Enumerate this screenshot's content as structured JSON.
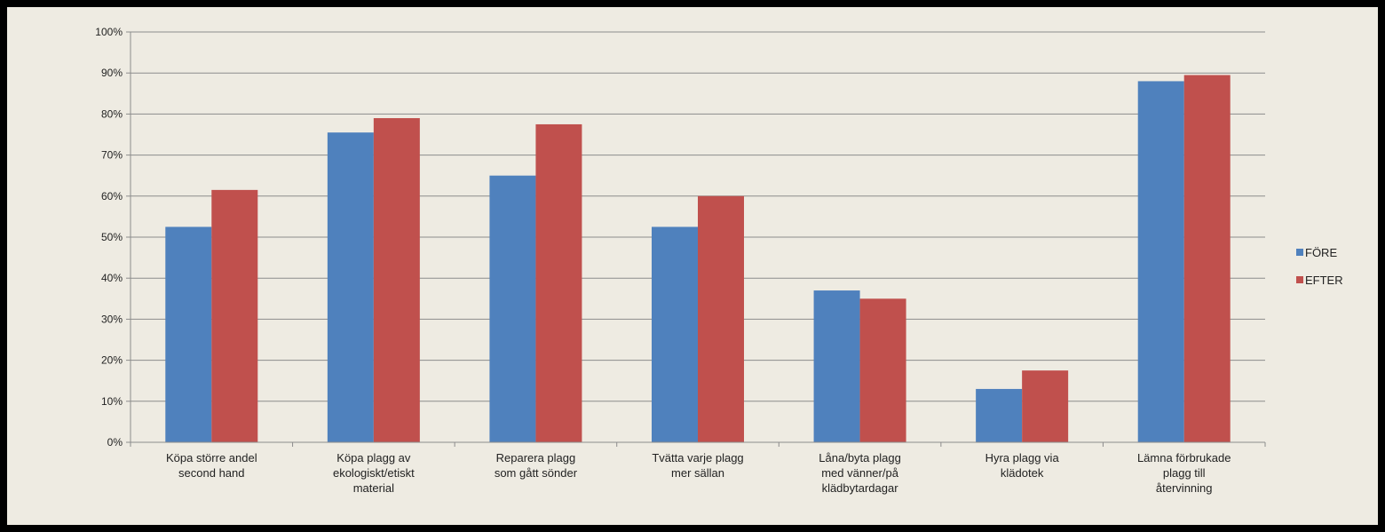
{
  "chart_data": {
    "type": "bar",
    "categories": [
      [
        "Köpa större andel",
        "second hand"
      ],
      [
        "Köpa plagg av",
        "ekologiskt/etiskt",
        "material"
      ],
      [
        "Reparera plagg",
        "som gått sönder"
      ],
      [
        "Tvätta varje plagg",
        "mer sällan"
      ],
      [
        "Låna/byta plagg",
        "med vänner/på",
        "klädbytardagar"
      ],
      [
        "Hyra plagg via",
        "klädotek"
      ],
      [
        "Lämna förbrukade",
        "plagg till",
        "återvinning"
      ]
    ],
    "series": [
      {
        "name": "FÖRE",
        "color": "#4f81bd",
        "values": [
          52.5,
          75.5,
          65,
          52.5,
          37,
          13,
          88
        ]
      },
      {
        "name": "EFTER",
        "color": "#c0504d",
        "values": [
          61.5,
          79,
          77.5,
          60,
          35,
          17.5,
          89.5
        ]
      }
    ],
    "ylim": [
      0,
      100
    ],
    "yticks": [
      "0%",
      "10%",
      "20%",
      "30%",
      "40%",
      "50%",
      "60%",
      "70%",
      "80%",
      "90%",
      "100%"
    ],
    "grid": true,
    "legend_position": "right",
    "xlabel": "",
    "ylabel": ""
  }
}
